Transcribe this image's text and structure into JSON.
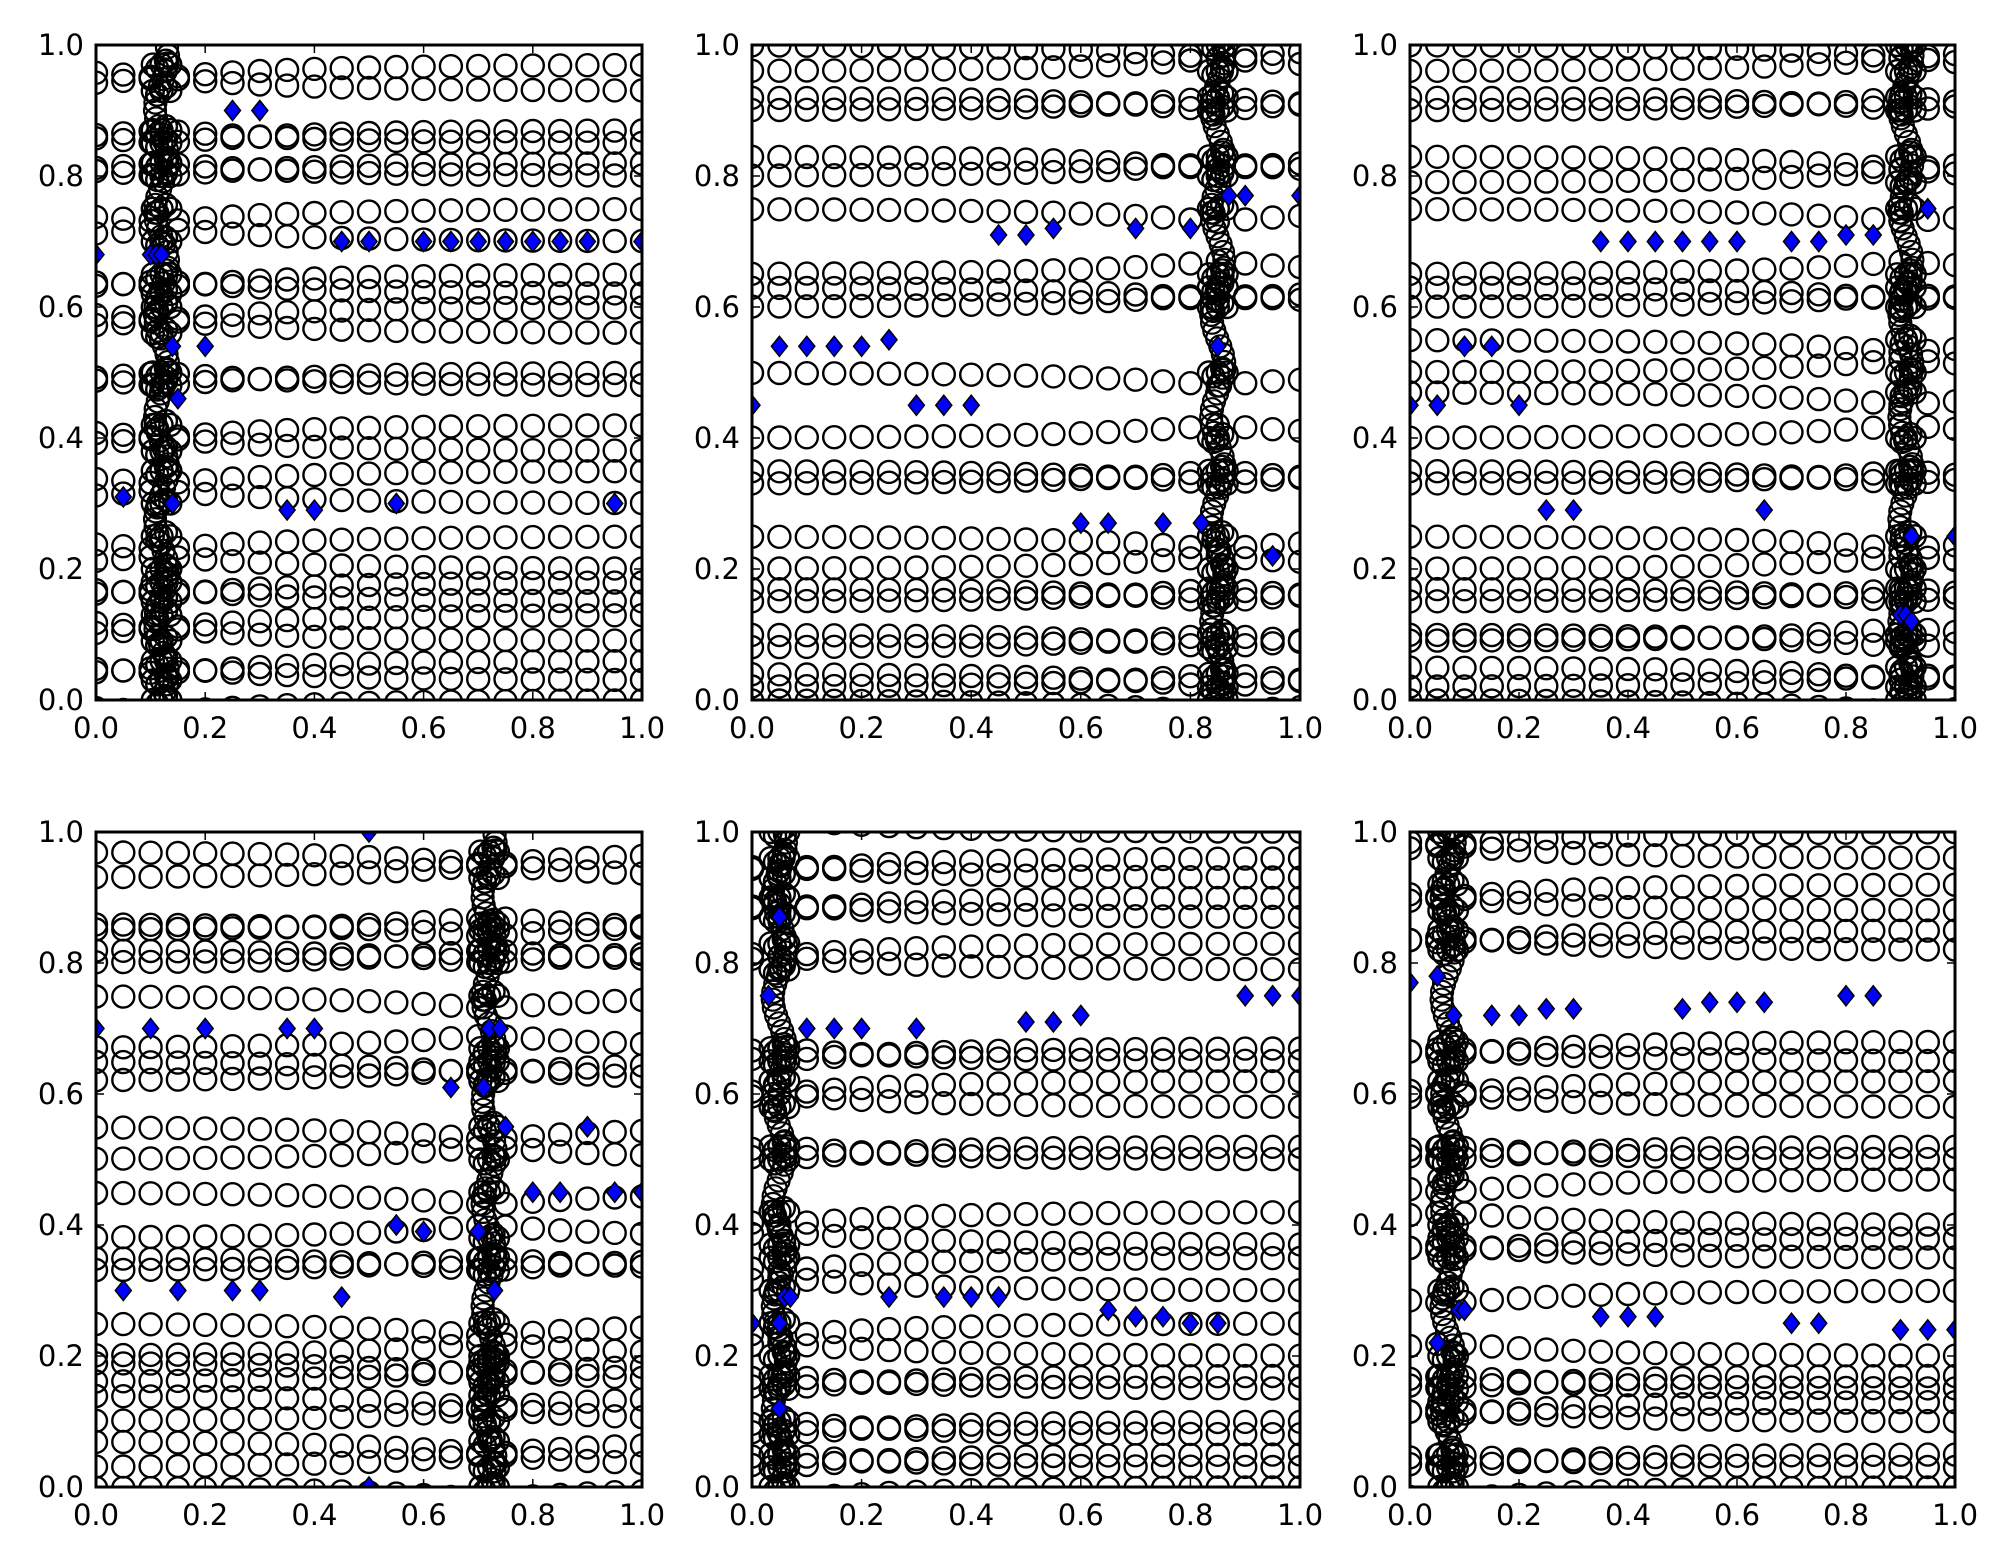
{
  "figure": {
    "layout": "2 rows x 3 columns of scatter panels",
    "marker_styles": {
      "circle": {
        "shape": "open circle",
        "edge_color": "#000000",
        "fill": "none"
      },
      "diamond": {
        "shape": "diamond",
        "edge_color": "#000000",
        "fill": "#0000ff"
      }
    }
  },
  "chart_data": [
    {
      "type": "scatter",
      "title": "",
      "xlabel": "",
      "ylabel": "",
      "xlim": [
        0,
        1
      ],
      "ylim": [
        0,
        1
      ],
      "xticks": [
        "0.0",
        "0.2",
        "0.4",
        "0.6",
        "0.8",
        "1.0"
      ],
      "yticks": [
        "0.0",
        "0.2",
        "0.4",
        "0.6",
        "0.8",
        "1.0"
      ],
      "grid": false,
      "circle_grid": {
        "x_columns": [
          0,
          0.05,
          0.1,
          0.15,
          0.2,
          0.25,
          0.3,
          0.35,
          0.4,
          0.45,
          0.5,
          0.55,
          0.6,
          0.65,
          0.7,
          0.75,
          0.8,
          0.85,
          0.9,
          0.95,
          1.0
        ],
        "front_x": 0.12,
        "rows": [
          0.0,
          0.03,
          0.06,
          0.09,
          0.13,
          0.15,
          0.18,
          0.2,
          0.25,
          0.3,
          0.35,
          0.38,
          0.42,
          0.48,
          0.5,
          0.56,
          0.6,
          0.62,
          0.65,
          0.7,
          0.75,
          0.8,
          0.82,
          0.85,
          0.87,
          0.93,
          0.97
        ]
      },
      "series": [
        {
          "name": "diamonds",
          "marker": "diamond",
          "points": [
            [
              0.0,
              0.68
            ],
            [
              0.1,
              0.68
            ],
            [
              0.11,
              0.68
            ],
            [
              0.12,
              0.68
            ],
            [
              0.25,
              0.9
            ],
            [
              0.3,
              0.9
            ],
            [
              0.45,
              0.7
            ],
            [
              0.5,
              0.7
            ],
            [
              0.6,
              0.7
            ],
            [
              0.65,
              0.7
            ],
            [
              0.7,
              0.7
            ],
            [
              0.75,
              0.7
            ],
            [
              0.8,
              0.7
            ],
            [
              0.85,
              0.7
            ],
            [
              0.9,
              0.7
            ],
            [
              1.0,
              0.7
            ],
            [
              0.14,
              0.54
            ],
            [
              0.2,
              0.54
            ],
            [
              0.15,
              0.46
            ],
            [
              0.05,
              0.31
            ],
            [
              0.14,
              0.3
            ],
            [
              0.35,
              0.29
            ],
            [
              0.4,
              0.29
            ],
            [
              0.55,
              0.3
            ],
            [
              0.95,
              0.3
            ]
          ]
        }
      ]
    },
    {
      "type": "scatter",
      "title": "",
      "xlabel": "",
      "ylabel": "",
      "xlim": [
        0,
        1
      ],
      "ylim": [
        0,
        1
      ],
      "xticks": [
        "0.0",
        "0.2",
        "0.4",
        "0.6",
        "0.8",
        "1.0"
      ],
      "yticks": [
        "0.0",
        "0.2",
        "0.4",
        "0.6",
        "0.8",
        "1.0"
      ],
      "grid": false,
      "circle_grid": {
        "x_columns": [
          0,
          0.05,
          0.1,
          0.15,
          0.2,
          0.25,
          0.3,
          0.35,
          0.4,
          0.45,
          0.5,
          0.55,
          0.6,
          0.65,
          0.7,
          0.75,
          0.8,
          0.85,
          0.9,
          0.95,
          1.0
        ],
        "front_x": 0.85,
        "rows": [
          0.0,
          0.02,
          0.04,
          0.08,
          0.1,
          0.15,
          0.17,
          0.2,
          0.25,
          0.33,
          0.35,
          0.4,
          0.5,
          0.6,
          0.63,
          0.65,
          0.75,
          0.8,
          0.83,
          0.9,
          0.92,
          0.96,
          1.0
        ]
      },
      "series": [
        {
          "name": "diamonds",
          "marker": "diamond",
          "points": [
            [
              0.87,
              0.77
            ],
            [
              0.9,
              0.77
            ],
            [
              1.0,
              0.77
            ],
            [
              0.45,
              0.71
            ],
            [
              0.5,
              0.71
            ],
            [
              0.55,
              0.72
            ],
            [
              0.7,
              0.72
            ],
            [
              0.8,
              0.72
            ],
            [
              0.05,
              0.54
            ],
            [
              0.1,
              0.54
            ],
            [
              0.15,
              0.54
            ],
            [
              0.2,
              0.54
            ],
            [
              0.25,
              0.55
            ],
            [
              0.85,
              0.54
            ],
            [
              0.0,
              0.45
            ],
            [
              0.3,
              0.45
            ],
            [
              0.35,
              0.45
            ],
            [
              0.4,
              0.45
            ],
            [
              0.6,
              0.27
            ],
            [
              0.65,
              0.27
            ],
            [
              0.75,
              0.27
            ],
            [
              0.82,
              0.27
            ],
            [
              0.95,
              0.22
            ]
          ]
        }
      ]
    },
    {
      "type": "scatter",
      "title": "",
      "xlabel": "",
      "ylabel": "",
      "xlim": [
        0,
        1
      ],
      "ylim": [
        0,
        1
      ],
      "xticks": [
        "0.0",
        "0.2",
        "0.4",
        "0.6",
        "0.8",
        "1.0"
      ],
      "yticks": [
        "0.0",
        "0.2",
        "0.4",
        "0.6",
        "0.8",
        "1.0"
      ],
      "grid": false,
      "circle_grid": {
        "x_columns": [
          0,
          0.05,
          0.1,
          0.15,
          0.2,
          0.25,
          0.3,
          0.35,
          0.4,
          0.45,
          0.5,
          0.55,
          0.6,
          0.65,
          0.7,
          0.75,
          0.8,
          0.85,
          0.9,
          0.95,
          1.0
        ],
        "front_x": 0.91,
        "rows": [
          0.0,
          0.02,
          0.05,
          0.09,
          0.1,
          0.15,
          0.17,
          0.2,
          0.25,
          0.33,
          0.35,
          0.4,
          0.47,
          0.5,
          0.55,
          0.6,
          0.63,
          0.65,
          0.75,
          0.79,
          0.83,
          0.9,
          0.92,
          0.96,
          1.0
        ]
      },
      "series": [
        {
          "name": "diamonds",
          "marker": "diamond",
          "points": [
            [
              0.95,
              0.75
            ],
            [
              0.35,
              0.7
            ],
            [
              0.4,
              0.7
            ],
            [
              0.45,
              0.7
            ],
            [
              0.5,
              0.7
            ],
            [
              0.55,
              0.7
            ],
            [
              0.6,
              0.7
            ],
            [
              0.7,
              0.7
            ],
            [
              0.75,
              0.7
            ],
            [
              0.8,
              0.71
            ],
            [
              0.85,
              0.71
            ],
            [
              0.1,
              0.54
            ],
            [
              0.15,
              0.54
            ],
            [
              0.0,
              0.45
            ],
            [
              0.05,
              0.45
            ],
            [
              0.2,
              0.45
            ],
            [
              0.25,
              0.29
            ],
            [
              0.3,
              0.29
            ],
            [
              0.65,
              0.29
            ],
            [
              0.92,
              0.25
            ],
            [
              1.0,
              0.25
            ],
            [
              0.9,
              0.13
            ],
            [
              0.91,
              0.13
            ],
            [
              0.92,
              0.12
            ]
          ]
        }
      ]
    },
    {
      "type": "scatter",
      "title": "",
      "xlabel": "",
      "ylabel": "",
      "xlim": [
        0,
        1
      ],
      "ylim": [
        0,
        1
      ],
      "xticks": [
        "0.0",
        "0.2",
        "0.4",
        "0.6",
        "0.8",
        "1.0"
      ],
      "yticks": [
        "0.0",
        "0.2",
        "0.4",
        "0.6",
        "0.8",
        "1.0"
      ],
      "grid": false,
      "circle_grid": {
        "x_columns": [
          0,
          0.05,
          0.1,
          0.15,
          0.2,
          0.25,
          0.3,
          0.35,
          0.4,
          0.45,
          0.5,
          0.55,
          0.6,
          0.65,
          0.7,
          0.75,
          0.8,
          0.85,
          0.9,
          0.95,
          1.0
        ],
        "front_x": 0.72,
        "rows": [
          0.0,
          0.03,
          0.07,
          0.1,
          0.14,
          0.16,
          0.19,
          0.2,
          0.25,
          0.33,
          0.35,
          0.38,
          0.45,
          0.5,
          0.55,
          0.62,
          0.65,
          0.67,
          0.75,
          0.8,
          0.82,
          0.85,
          0.86,
          0.93,
          0.97
        ]
      },
      "series": [
        {
          "name": "diamonds",
          "marker": "diamond",
          "points": [
            [
              0.5,
              1.0
            ],
            [
              0.0,
              0.7
            ],
            [
              0.1,
              0.7
            ],
            [
              0.2,
              0.7
            ],
            [
              0.35,
              0.7
            ],
            [
              0.4,
              0.7
            ],
            [
              0.72,
              0.7
            ],
            [
              0.74,
              0.7
            ],
            [
              0.65,
              0.61
            ],
            [
              0.71,
              0.61
            ],
            [
              0.75,
              0.55
            ],
            [
              0.9,
              0.55
            ],
            [
              0.8,
              0.45
            ],
            [
              0.85,
              0.45
            ],
            [
              0.95,
              0.45
            ],
            [
              1.0,
              0.45
            ],
            [
              0.55,
              0.4
            ],
            [
              0.6,
              0.39
            ],
            [
              0.7,
              0.39
            ],
            [
              0.05,
              0.3
            ],
            [
              0.15,
              0.3
            ],
            [
              0.25,
              0.3
            ],
            [
              0.3,
              0.3
            ],
            [
              0.45,
              0.29
            ],
            [
              0.73,
              0.3
            ],
            [
              0.5,
              0.0
            ]
          ]
        }
      ]
    },
    {
      "type": "scatter",
      "title": "",
      "xlabel": "",
      "ylabel": "",
      "xlim": [
        0,
        1
      ],
      "ylim": [
        0,
        1
      ],
      "xticks": [
        "0.0",
        "0.2",
        "0.4",
        "0.6",
        "0.8",
        "1.0"
      ],
      "yticks": [
        "0.0",
        "0.2",
        "0.4",
        "0.6",
        "0.8",
        "1.0"
      ],
      "grid": false,
      "circle_grid": {
        "x_columns": [
          0,
          0.05,
          0.1,
          0.15,
          0.2,
          0.25,
          0.3,
          0.35,
          0.4,
          0.45,
          0.5,
          0.55,
          0.6,
          0.65,
          0.7,
          0.75,
          0.8,
          0.85,
          0.9,
          0.95,
          1.0
        ],
        "front_x": 0.05,
        "rows": [
          0.0,
          0.03,
          0.05,
          0.08,
          0.1,
          0.15,
          0.17,
          0.2,
          0.25,
          0.3,
          0.35,
          0.37,
          0.42,
          0.5,
          0.52,
          0.58,
          0.62,
          0.65,
          0.67,
          0.79,
          0.83,
          0.87,
          0.9,
          0.93,
          0.96,
          1.0
        ]
      },
      "series": [
        {
          "name": "diamonds",
          "marker": "diamond",
          "points": [
            [
              0.05,
              0.87
            ],
            [
              0.03,
              0.75
            ],
            [
              0.9,
              0.75
            ],
            [
              0.95,
              0.75
            ],
            [
              1.0,
              0.75
            ],
            [
              0.1,
              0.7
            ],
            [
              0.15,
              0.7
            ],
            [
              0.2,
              0.7
            ],
            [
              0.3,
              0.7
            ],
            [
              0.5,
              0.71
            ],
            [
              0.55,
              0.71
            ],
            [
              0.6,
              0.72
            ],
            [
              0.06,
              0.29
            ],
            [
              0.07,
              0.29
            ],
            [
              0.25,
              0.29
            ],
            [
              0.35,
              0.29
            ],
            [
              0.4,
              0.29
            ],
            [
              0.45,
              0.29
            ],
            [
              0.65,
              0.27
            ],
            [
              0.7,
              0.26
            ],
            [
              0.75,
              0.26
            ],
            [
              0.8,
              0.25
            ],
            [
              0.85,
              0.25
            ],
            [
              0.0,
              0.25
            ],
            [
              0.05,
              0.25
            ],
            [
              0.05,
              0.12
            ]
          ]
        }
      ]
    },
    {
      "type": "scatter",
      "title": "",
      "xlabel": "",
      "ylabel": "",
      "xlim": [
        0,
        1
      ],
      "ylim": [
        0,
        1
      ],
      "xticks": [
        "0.0",
        "0.2",
        "0.4",
        "0.6",
        "0.8",
        "1.0"
      ],
      "yticks": [
        "0.0",
        "0.2",
        "0.4",
        "0.6",
        "0.8",
        "1.0"
      ],
      "grid": false,
      "circle_grid": {
        "x_columns": [
          0,
          0.05,
          0.1,
          0.15,
          0.2,
          0.25,
          0.3,
          0.35,
          0.4,
          0.45,
          0.5,
          0.55,
          0.6,
          0.65,
          0.7,
          0.75,
          0.8,
          0.85,
          0.9,
          0.95,
          1.0
        ],
        "front_x": 0.07,
        "rows": [
          0.0,
          0.03,
          0.05,
          0.1,
          0.13,
          0.15,
          0.17,
          0.2,
          0.3,
          0.35,
          0.38,
          0.4,
          0.47,
          0.5,
          0.52,
          0.58,
          0.62,
          0.65,
          0.68,
          0.82,
          0.85,
          0.88,
          0.92,
          0.96,
          1.0
        ]
      },
      "series": [
        {
          "name": "diamonds",
          "marker": "diamond",
          "points": [
            [
              0.0,
              0.77
            ],
            [
              0.05,
              0.78
            ],
            [
              0.08,
              0.72
            ],
            [
              0.15,
              0.72
            ],
            [
              0.2,
              0.72
            ],
            [
              0.25,
              0.73
            ],
            [
              0.3,
              0.73
            ],
            [
              0.5,
              0.73
            ],
            [
              0.55,
              0.74
            ],
            [
              0.6,
              0.74
            ],
            [
              0.65,
              0.74
            ],
            [
              0.8,
              0.75
            ],
            [
              0.85,
              0.75
            ],
            [
              0.09,
              0.27
            ],
            [
              0.1,
              0.27
            ],
            [
              0.35,
              0.26
            ],
            [
              0.4,
              0.26
            ],
            [
              0.45,
              0.26
            ],
            [
              0.7,
              0.25
            ],
            [
              0.75,
              0.25
            ],
            [
              0.9,
              0.24
            ],
            [
              0.95,
              0.24
            ],
            [
              1.0,
              0.24
            ],
            [
              0.05,
              0.22
            ]
          ]
        }
      ]
    }
  ]
}
